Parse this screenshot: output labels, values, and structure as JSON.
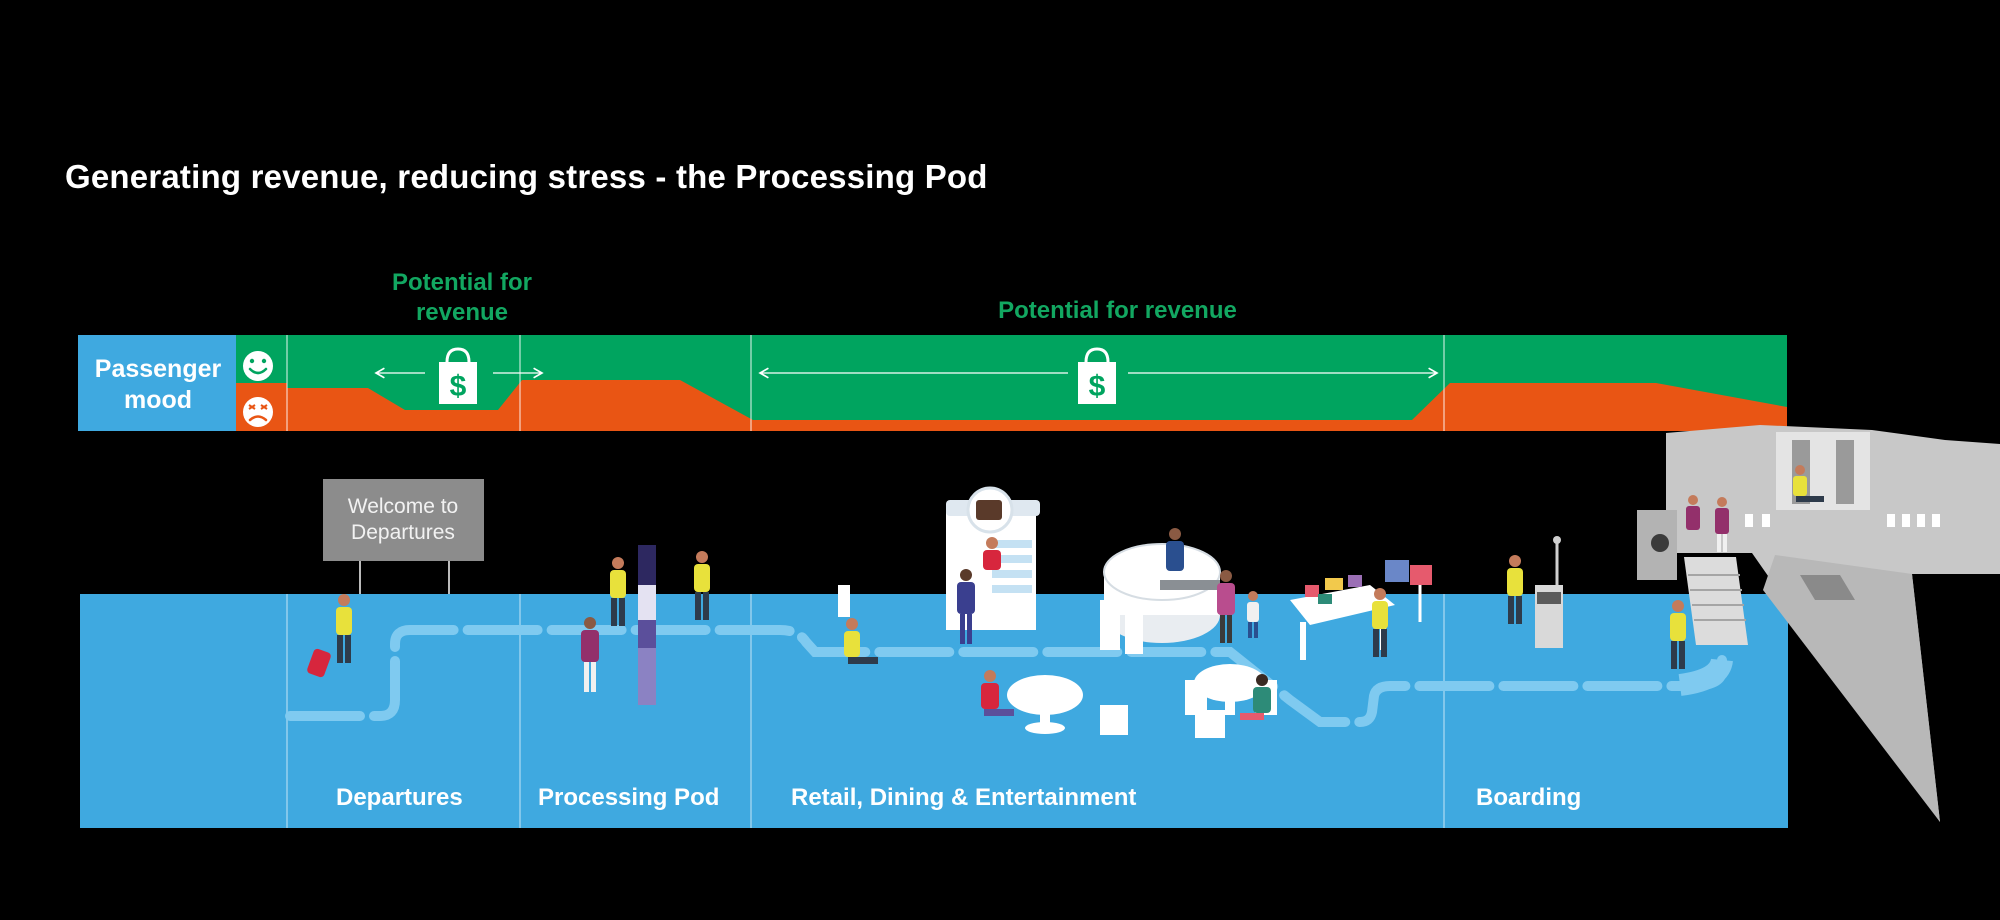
{
  "title": "Generating revenue, reducing stress - the Processing Pod",
  "mood_bar": {
    "label": "Passenger mood",
    "happy_icon": "smiley-face-icon",
    "sad_icon": "angry-face-icon",
    "revenue_labels": [
      "Potential for revenue",
      "Potential for revenue"
    ],
    "revenue_icon": "shopping-bag-dollar-icon"
  },
  "sign": {
    "text": "Welcome to Departures"
  },
  "zones": [
    "Departures",
    "Processing Pod",
    "Retail, Dining & Entertainment",
    "Boarding"
  ],
  "colors": {
    "background": "#000000",
    "floor": "#3fa9e0",
    "mood_good": "#00a45f",
    "mood_bad": "#e95514",
    "revenue_text": "#12a761",
    "path": "#7fcaf0",
    "aircraft": "#c8c8c8"
  }
}
